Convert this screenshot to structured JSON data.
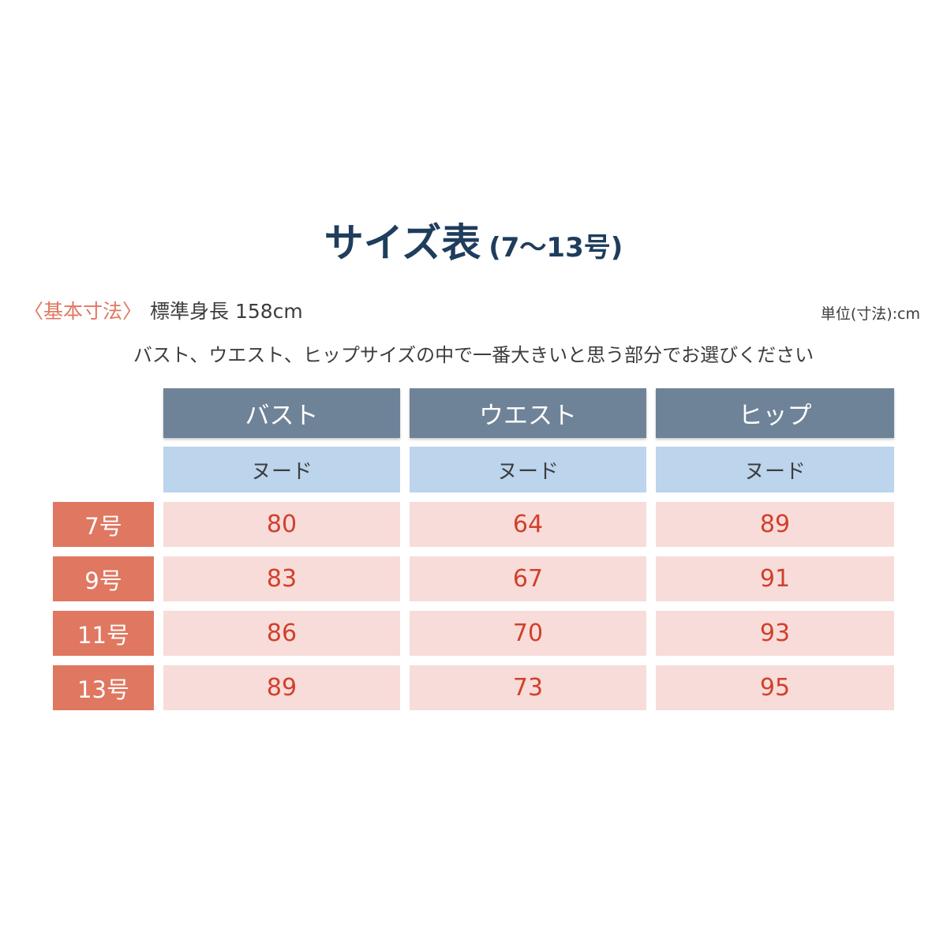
{
  "title": {
    "main": "サイズ表",
    "sub": "(7〜13号)"
  },
  "basic": {
    "label": "〈基本寸法〉",
    "value": "標準身長 158cm"
  },
  "unit": "単位(寸法):cm",
  "instruction": "バスト、ウエスト、ヒップサイズの中で一番大きいと思う部分でお選びください",
  "table": {
    "columns": [
      {
        "label": "バスト",
        "sub": "ヌード"
      },
      {
        "label": "ウエスト",
        "sub": "ヌード"
      },
      {
        "label": "ヒップ",
        "sub": "ヌード"
      }
    ],
    "rows": [
      {
        "size": "7号",
        "values": [
          "80",
          "64",
          "89"
        ]
      },
      {
        "size": "9号",
        "values": [
          "83",
          "67",
          "91"
        ]
      },
      {
        "size": "11号",
        "values": [
          "86",
          "70",
          "93"
        ]
      },
      {
        "size": "13号",
        "values": [
          "89",
          "73",
          "95"
        ]
      }
    ]
  },
  "colors": {
    "title": "#1f3d5c",
    "accent": "#e07761",
    "header": "#6e8398",
    "subheader": "#bcd4ec",
    "cell": "#f8dcd9",
    "value": "#d1402c"
  }
}
